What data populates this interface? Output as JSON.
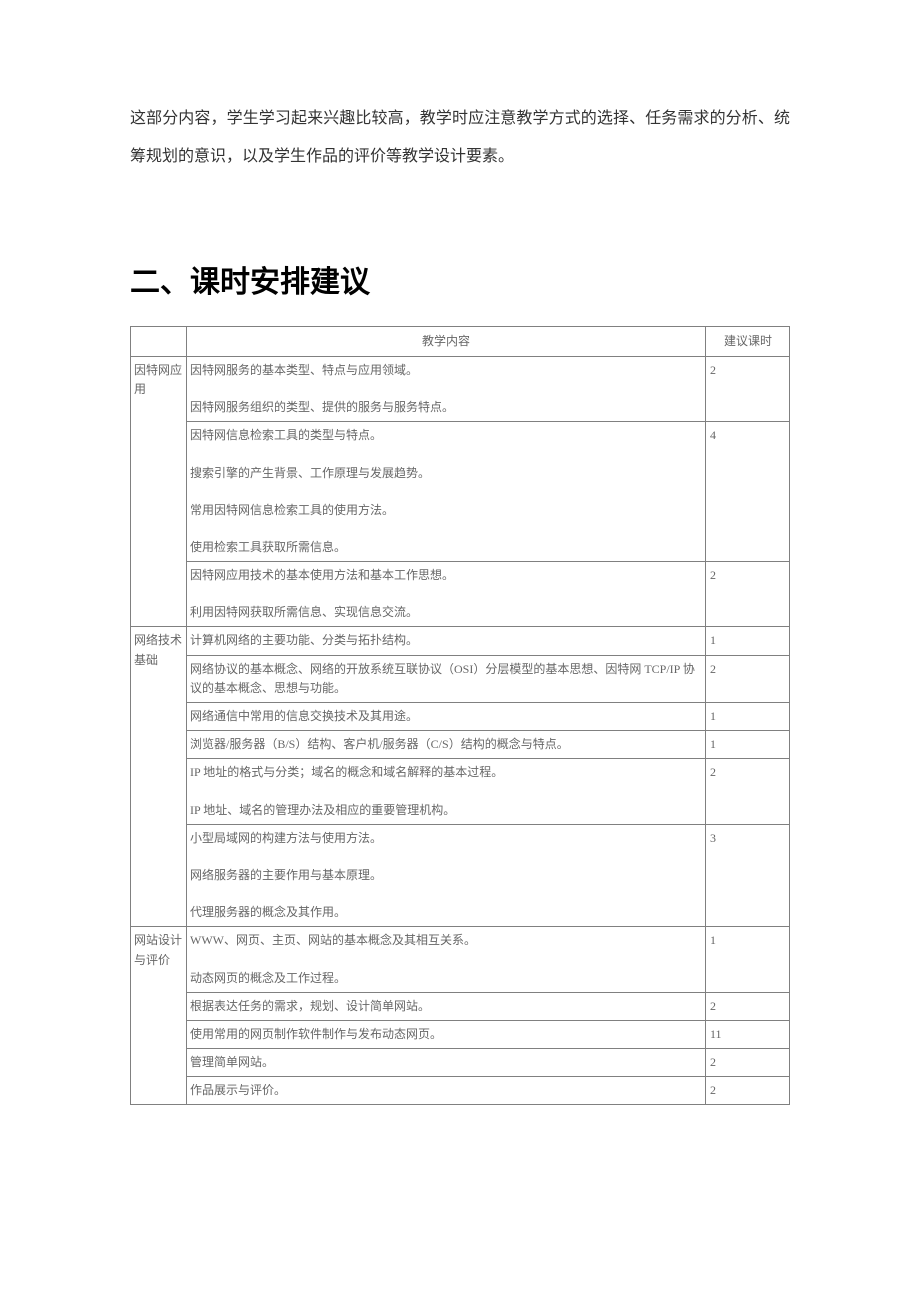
{
  "intro": {
    "paragraph": "这部分内容，学生学习起来兴趣比较高，教学时应注意教学方式的选择、任务需求的分析、统筹规划的意识，以及学生作品的评价等教学设计要素。"
  },
  "section": {
    "title": "二、课时安排建议"
  },
  "table": {
    "headers": {
      "col1": "",
      "col2": "教学内容",
      "col3": "建议课时"
    },
    "rows": [
      {
        "category": "因特网应用",
        "content_lines": [
          "因特网服务的基本类型、特点与应用领域。",
          "因特网服务组织的类型、提供的服务与服务特点。"
        ],
        "hours": "2"
      },
      {
        "category": "",
        "content_lines": [
          "因特网信息检索工具的类型与特点。",
          "搜索引擎的产生背景、工作原理与发展趋势。",
          "常用因特网信息检索工具的使用方法。",
          "使用检索工具获取所需信息。"
        ],
        "hours": "4"
      },
      {
        "category": "",
        "content_lines": [
          "因特网应用技术的基本使用方法和基本工作思想。",
          "利用因特网获取所需信息、实现信息交流。"
        ],
        "hours": "2"
      },
      {
        "category": "网络技术基础",
        "content_lines": [
          "计算机网络的主要功能、分类与拓扑结构。"
        ],
        "hours": "1"
      },
      {
        "category": "",
        "content_lines": [
          "网络协议的基本概念、网络的开放系统互联协议（OSI）分层模型的基本思想、因特网 TCP/IP 协议的基本概念、思想与功能。"
        ],
        "hours": "2"
      },
      {
        "category": "",
        "content_lines": [
          "网络通信中常用的信息交换技术及其用途。"
        ],
        "hours": "1"
      },
      {
        "category": "",
        "content_lines": [
          "浏览器/服务器（B/S）结构、客户机/服务器（C/S）结构的概念与特点。"
        ],
        "hours": "1"
      },
      {
        "category": "",
        "content_lines": [
          "IP 地址的格式与分类；域名的概念和域名解释的基本过程。",
          "IP 地址、域名的管理办法及相应的重要管理机构。"
        ],
        "hours": "2"
      },
      {
        "category": "",
        "content_lines": [
          "小型局域网的构建方法与使用方法。",
          "网络服务器的主要作用与基本原理。",
          "代理服务器的概念及其作用。"
        ],
        "hours": "3"
      },
      {
        "category": "网站设计与评价",
        "content_lines": [
          "WWW、网页、主页、网站的基本概念及其相互关系。",
          "动态网页的概念及工作过程。"
        ],
        "hours": "1"
      },
      {
        "category": "",
        "content_lines": [
          "根据表达任务的需求，规划、设计简单网站。"
        ],
        "hours": "2"
      },
      {
        "category": "",
        "content_lines": [
          "使用常用的网页制作软件制作与发布动态网页。"
        ],
        "hours": "11"
      },
      {
        "category": "",
        "content_lines": [
          "管理简单网站。"
        ],
        "hours": "2"
      },
      {
        "category": "",
        "content_lines": [
          "作品展示与评价。"
        ],
        "hours": "2"
      }
    ]
  }
}
